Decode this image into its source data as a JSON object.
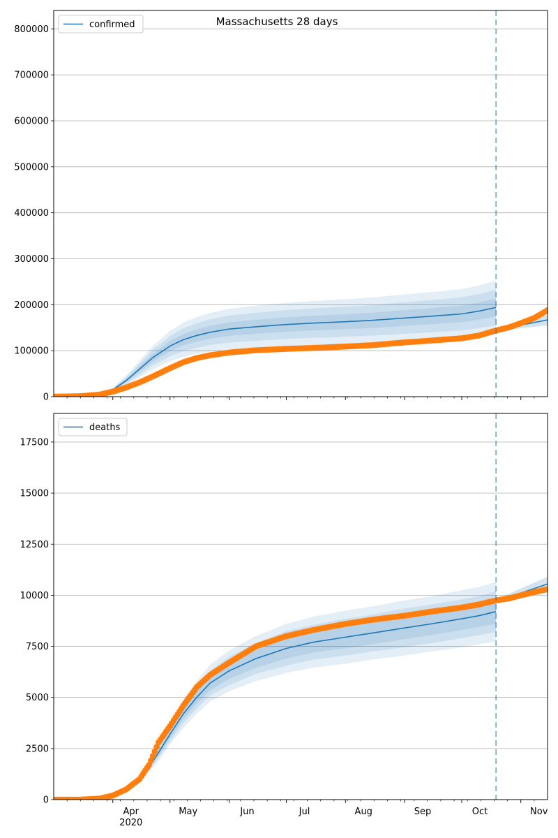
{
  "figure": {
    "title": "Massachusetts 28 days"
  },
  "colors": {
    "model": "#1f77b4",
    "band": "#1f77b4",
    "observed": "#ff7f0e",
    "grid": "#b0b0b0",
    "vline": "#1f77b4"
  },
  "chart_data": [
    {
      "type": "line",
      "legend": [
        "confirmed"
      ],
      "legend_position": "top-left",
      "grid": "horizontal",
      "xlabel": "",
      "ylabel": "",
      "ylim": [
        0,
        840000
      ],
      "yticks": [
        0,
        100000,
        200000,
        300000,
        400000,
        500000,
        600000,
        700000,
        800000
      ],
      "ytick_labels": [
        "0",
        "100000",
        "200000",
        "300000",
        "400000",
        "500000",
        "600000",
        "700000",
        "800000"
      ],
      "xlim": [
        "2020-03-01",
        "2020-11-15"
      ],
      "xtick_labels": [
        "Apr\n2020",
        "May",
        "Jun",
        "Jul",
        "Aug",
        "Sep",
        "Oct",
        "Nov"
      ],
      "forecast_start": "2020-10-19",
      "model_fit": {
        "name": "confirmed",
        "x": [
          "2020-03-01",
          "2020-03-15",
          "2020-03-25",
          "2020-04-01",
          "2020-04-08",
          "2020-04-15",
          "2020-04-22",
          "2020-05-01",
          "2020-05-08",
          "2020-05-15",
          "2020-05-22",
          "2020-06-01",
          "2020-06-15",
          "2020-07-01",
          "2020-07-15",
          "2020-08-01",
          "2020-08-15",
          "2020-09-01",
          "2020-09-15",
          "2020-10-01",
          "2020-10-10",
          "2020-10-19"
        ],
        "y": [
          0,
          1000,
          5000,
          15000,
          35000,
          60000,
          85000,
          110000,
          124000,
          133000,
          140000,
          147000,
          152000,
          157000,
          160000,
          163000,
          166000,
          171000,
          175000,
          180000,
          186000,
          194000
        ],
        "bands": [
          {
            "lower": [
              0,
              700,
              3500,
              10500,
              24500,
              42000,
              59500,
              77000,
              86800,
              93100,
              98000,
              102900,
              106400,
              109900,
              112000,
              114100,
              116200,
              119700,
              122500,
              126000,
              130200,
              135800
            ],
            "upper": [
              0,
              1300,
              6500,
              19500,
              45500,
              78000,
              110500,
              143000,
              161200,
              172900,
              182000,
              191100,
              197600,
              204100,
              208000,
              211900,
              215800,
              222300,
              227500,
              234000,
              241800,
              252200
            ]
          },
          {
            "lower": [
              0,
              800,
              4000,
              12000,
              28000,
              48000,
              68000,
              88000,
              99200,
              106400,
              112000,
              117600,
              121600,
              125600,
              128000,
              130400,
              132800,
              136800,
              140000,
              144000,
              148800,
              155200
            ],
            "upper": [
              0,
              1200,
              6000,
              18000,
              42000,
              72000,
              102000,
              132000,
              148800,
              159600,
              168000,
              176400,
              182400,
              188400,
              192000,
              195600,
              199200,
              205200,
              210000,
              216000,
              223200,
              232800
            ]
          },
          {
            "lower": [
              0,
              900,
              4500,
              13500,
              31500,
              54000,
              76500,
              99000,
              111600,
              119700,
              126000,
              132300,
              136800,
              141300,
              144000,
              146700,
              149400,
              153900,
              157500,
              162000,
              167400,
              174600
            ],
            "upper": [
              0,
              1100,
              5500,
              16500,
              38500,
              66000,
              93500,
              121000,
              136400,
              146300,
              154000,
              161700,
              167200,
              172700,
              176000,
              179300,
              182600,
              188100,
              192500,
              198000,
              204600,
              213400
            ]
          }
        ]
      },
      "forecast": {
        "x": [
          "2020-10-19",
          "2020-11-15"
        ],
        "y": [
          145000,
          167000
        ],
        "band_lower": [
          143000,
          155000
        ],
        "band_upper": [
          147000,
          178000
        ]
      },
      "observed": {
        "x": [
          "2020-03-01",
          "2020-03-15",
          "2020-03-25",
          "2020-04-01",
          "2020-04-08",
          "2020-04-15",
          "2020-04-22",
          "2020-05-01",
          "2020-05-08",
          "2020-05-15",
          "2020-05-22",
          "2020-06-01",
          "2020-06-15",
          "2020-07-01",
          "2020-07-15",
          "2020-08-01",
          "2020-08-15",
          "2020-09-01",
          "2020-09-15",
          "2020-10-01",
          "2020-10-10",
          "2020-10-19",
          "2020-10-26",
          "2020-11-01",
          "2020-11-08",
          "2020-11-15"
        ],
        "y": [
          0,
          1000,
          4500,
          11000,
          20000,
          31000,
          44000,
          62000,
          75000,
          84000,
          90000,
          96000,
          101000,
          104000,
          106000,
          109000,
          112000,
          118000,
          122000,
          127000,
          133000,
          144000,
          151000,
          160000,
          171000,
          188000
        ]
      }
    },
    {
      "type": "line",
      "legend": [
        "deaths"
      ],
      "legend_position": "top-left",
      "grid": "horizontal",
      "xlabel": "",
      "ylabel": "",
      "ylim": [
        0,
        18900
      ],
      "yticks": [
        0,
        2500,
        5000,
        7500,
        10000,
        12500,
        15000,
        17500
      ],
      "ytick_labels": [
        "0",
        "2500",
        "5000",
        "7500",
        "10000",
        "12500",
        "15000",
        "17500"
      ],
      "xlim": [
        "2020-03-01",
        "2020-11-15"
      ],
      "xtick_labels": [
        "Apr\n2020",
        "May",
        "Jun",
        "Jul",
        "Aug",
        "Sep",
        "Oct",
        "Nov"
      ],
      "forecast_start": "2020-10-19",
      "model_fit": {
        "name": "deaths",
        "x": [
          "2020-04-20",
          "2020-04-25",
          "2020-05-01",
          "2020-05-08",
          "2020-05-15",
          "2020-05-22",
          "2020-06-01",
          "2020-06-15",
          "2020-07-01",
          "2020-07-15",
          "2020-08-01",
          "2020-08-15",
          "2020-09-01",
          "2020-09-15",
          "2020-10-01",
          "2020-10-10",
          "2020-10-19"
        ],
        "y": [
          1600,
          2300,
          3200,
          4200,
          5000,
          5700,
          6300,
          6900,
          7400,
          7700,
          7950,
          8150,
          8400,
          8600,
          8850,
          9000,
          9200
        ],
        "bands": [
          {
            "lower": [
              1300,
              1900,
              2700,
              3500,
              4200,
              4800,
              5300,
              5800,
              6200,
              6450,
              6650,
              6850,
              7050,
              7250,
              7450,
              7600,
              7750
            ],
            "upper": [
              1900,
              2700,
              3700,
              4900,
              5800,
              6600,
              7300,
              8000,
              8600,
              8950,
              9250,
              9450,
              9750,
              9950,
              10250,
              10400,
              10650
            ]
          },
          {
            "lower": [
              1400,
              2050,
              2850,
              3750,
              4450,
              5100,
              5600,
              6150,
              6550,
              6850,
              7050,
              7250,
              7450,
              7650,
              7900,
              8050,
              8200
            ],
            "upper": [
              1800,
              2550,
              3550,
              4650,
              5550,
              6300,
              7000,
              7650,
              8250,
              8550,
              8850,
              9050,
              9350,
              9550,
              9800,
              9950,
              10200
            ]
          },
          {
            "lower": [
              1500,
              2150,
              3000,
              3950,
              4700,
              5350,
              5900,
              6450,
              6900,
              7200,
              7400,
              7600,
              7850,
              8050,
              8300,
              8450,
              8600
            ],
            "upper": [
              1700,
              2450,
              3400,
              4450,
              5300,
              6050,
              6700,
              7350,
              7900,
              8200,
              8500,
              8700,
              8950,
              9150,
              9400,
              9550,
              9800
            ]
          }
        ]
      },
      "forecast": {
        "x": [
          "2020-10-19",
          "2020-11-15"
        ],
        "y": [
          9700,
          10550
        ],
        "band_lower": [
          9600,
          10200
        ],
        "band_upper": [
          9800,
          10900
        ]
      },
      "observed": {
        "x": [
          "2020-03-01",
          "2020-03-15",
          "2020-03-25",
          "2020-04-01",
          "2020-04-08",
          "2020-04-15",
          "2020-04-20",
          "2020-04-25",
          "2020-05-01",
          "2020-05-08",
          "2020-05-15",
          "2020-05-22",
          "2020-06-01",
          "2020-06-15",
          "2020-07-01",
          "2020-07-15",
          "2020-08-01",
          "2020-08-15",
          "2020-09-01",
          "2020-09-15",
          "2020-10-01",
          "2020-10-10",
          "2020-10-19",
          "2020-10-26",
          "2020-11-01",
          "2020-11-08",
          "2020-11-15"
        ],
        "y": [
          0,
          0,
          50,
          200,
          500,
          1000,
          1700,
          2800,
          3600,
          4600,
          5500,
          6100,
          6700,
          7500,
          8000,
          8300,
          8600,
          8800,
          9000,
          9200,
          9400,
          9550,
          9750,
          9850,
          10000,
          10150,
          10300
        ]
      }
    }
  ]
}
